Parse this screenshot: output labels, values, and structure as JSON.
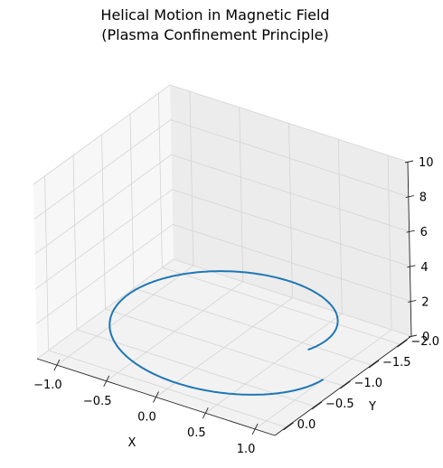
{
  "chart_data": {
    "type": "line",
    "title": "Helical Motion in Magnetic Field\n(Plasma Confinement Principle)",
    "xlabel": "X",
    "ylabel": "Y",
    "zlabel": "",
    "xlim": [
      -1.2,
      1.2
    ],
    "ylim": [
      -2.2,
      0.2
    ],
    "zlim": [
      0,
      10
    ],
    "xticks": [
      "−1.0",
      "−0.5",
      "0.0",
      "0.5",
      "1.0"
    ],
    "yticks": [
      "0.0",
      "−0.5",
      "−1.0",
      "−1.5",
      "−2.0"
    ],
    "zticks": [
      "0",
      "2",
      "4",
      "6",
      "8",
      "10"
    ],
    "grid": true,
    "series": [
      {
        "color": "#1f77b4",
        "parametric": {
          "x": "cos(t)",
          "y": "sin(t) - 1",
          "z": "t / 3",
          "t_range": [
            0,
            6.5
          ]
        }
      }
    ]
  }
}
